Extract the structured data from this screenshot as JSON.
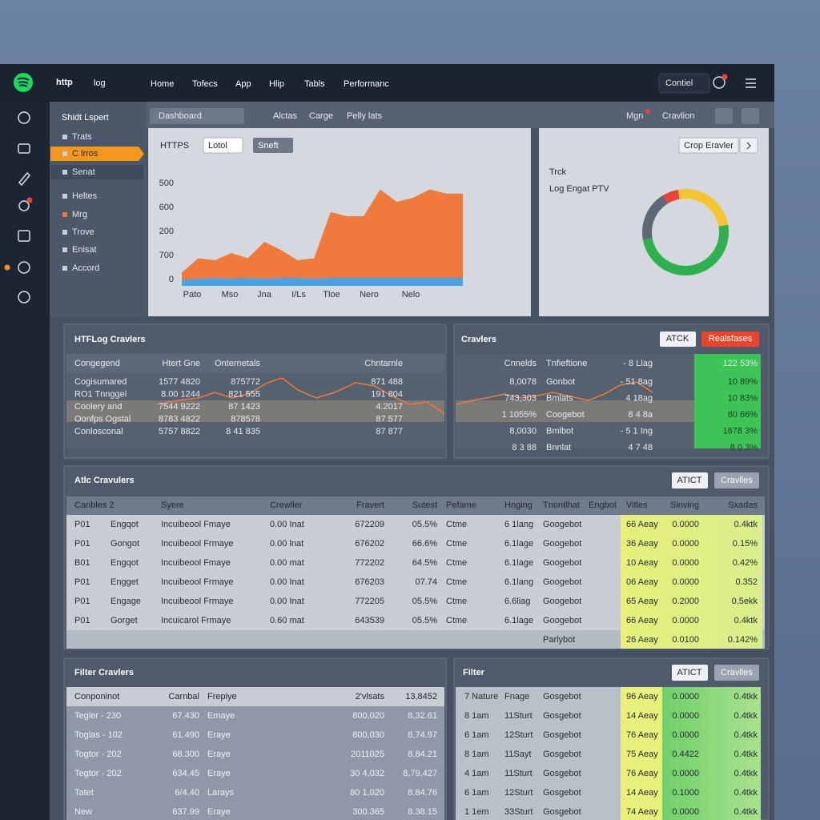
{
  "header": {
    "logo_main": "http",
    "logo_sub": "log",
    "nav": [
      "Home",
      "Tofecs",
      "App",
      "Hlip",
      "Tabls",
      "Performanc"
    ],
    "control": "Contiel"
  },
  "sidebar": {
    "title": "Shidt Lspert",
    "items": [
      "Trats",
      "C lrros",
      "Senat",
      "Heltes",
      "Mrg",
      "Trove",
      "Enisat",
      "Accord"
    ]
  },
  "toolbar": {
    "dropdown": "Dashboard",
    "links": [
      "Alctas",
      "Carge",
      "Pelly lats"
    ],
    "right": [
      "Mgn",
      "Cravlion"
    ]
  },
  "chart_panel": {
    "title": "HTTPS",
    "select1": "Lotol",
    "select2": "Sneft"
  },
  "donut_panel": {
    "button": "Crop Eravler",
    "title": "Trck",
    "subtitle": "Log Engat PTV"
  },
  "chart_data": [
    {
      "type": "area",
      "y_labels": [
        "500",
        "600",
        "200",
        "700",
        "0"
      ],
      "x_labels": [
        "Pato",
        "Mso",
        "Jna",
        "I/Ls",
        "Tloe",
        "Nero",
        "Nelo"
      ],
      "ylim": [
        0,
        100
      ],
      "series": [
        {
          "color": "#f07a3c",
          "values": [
            13,
            27,
            25,
            32,
            27,
            43,
            35,
            25,
            27,
            72,
            68,
            68,
            94,
            82,
            86,
            94,
            90,
            90
          ]
        },
        {
          "color": "#4aa3e0",
          "values": [
            6,
            7,
            8,
            7,
            8,
            7,
            8,
            8,
            7,
            8,
            8,
            8,
            8,
            8,
            8,
            8,
            8,
            8
          ]
        }
      ]
    },
    {
      "type": "pie",
      "values": [
        25,
        50,
        19,
        6
      ],
      "colors": [
        "#f5c531",
        "#2fb04f",
        "#5d6775",
        "#e8453a"
      ]
    }
  ],
  "panel_a": {
    "title": "HTFLog Cravlers",
    "header": [
      "Congegend",
      "Htert Gne",
      "Onternetals",
      "Chntarnle"
    ],
    "rows": [
      [
        "Cogisumared",
        "1577 4820",
        "875772",
        "871 488"
      ],
      [
        "RO1 Tnnggel",
        "8.00 1244",
        "821 555",
        "191 804"
      ],
      [
        "Coolery and",
        "7544 9222",
        "87 1423",
        "4.2017"
      ],
      [
        "Oonfps Ogstal",
        "8783 4822",
        "878578",
        "87 577"
      ],
      [
        "Conlosconal",
        "5757 8822",
        "8 41 835",
        "87 877"
      ]
    ]
  },
  "panel_b": {
    "title": "Cravlers",
    "buttons": [
      "ATCK",
      "Realsfases"
    ],
    "header": [
      "Cnnelds",
      "Tnfieftione",
      "- 8 Llag",
      "122 53%"
    ],
    "rows": [
      [
        "8,0078",
        "Gonbot",
        "- 51 8ag",
        "10 89%"
      ],
      [
        "743,303",
        "Bmlats",
        "4 18ag",
        "10 83%"
      ],
      [
        "1 1055%",
        "Coogebot",
        "8 4 8a",
        "80 66%"
      ],
      [
        "8,0030",
        "Bmlbot",
        "- 5 1 Ing",
        "1878 3%"
      ],
      [
        "8 3 88",
        "Bnnlat",
        "4 7 48",
        "8 0 3%"
      ]
    ]
  },
  "panel_c": {
    "title": "Atlc Cravulers",
    "buttons": [
      "ATICT",
      "Cravlles"
    ],
    "header": [
      "Canbles 2",
      null,
      "Syere",
      "Crewller",
      "Fravert",
      "Sutest",
      "Pefame",
      "Hnging",
      "Tnontlhat",
      "Engbot",
      "Vitles",
      "Sinving",
      "Sxadas"
    ],
    "rows": [
      [
        "P01",
        "Engqot",
        "Incuibeool Fmaye",
        "0.00 Inat",
        "672209",
        "05.5%",
        "Ctme",
        "6 1lang",
        "Googebot",
        null,
        "66 Aeay",
        "0.0000",
        "0.4ktk"
      ],
      [
        "P01",
        "Gongot",
        "Incuibeool Frmaye",
        "0.00 lnat",
        "676202",
        "66.6%",
        "Ctme",
        "6.1lage",
        "Googebot",
        null,
        "36 Aeay",
        "0.0000",
        "0.15%"
      ],
      [
        "B01",
        "Engqot",
        "Incuibeool Fmaye",
        "0.00 mat",
        "772202",
        "64.5%",
        "Ctme",
        "6.1lage",
        "Googebot",
        null,
        "10 Aeay",
        "0.0000",
        "0.42%"
      ],
      [
        "P01",
        "Engget",
        "Incuibeool Frmaye",
        "0.00 Inat",
        "676203",
        "07.74",
        "Ctme",
        "6.1lang",
        "Googebot",
        null,
        "06 Aeay",
        "0.0000",
        "0.352"
      ],
      [
        "P01",
        "Engage",
        "Incuibeool Frmaye",
        "0.00 Inat",
        "772205",
        "05.5%",
        "Ctme",
        "6.6liag",
        "Googebot",
        null,
        "65 Aeay",
        "0.2000",
        "0.5ekk"
      ],
      [
        "P01",
        "Gorget",
        "Incuicarol Frmaye",
        "0.60 mat",
        "643539",
        "05.5%",
        "Ctme",
        "6.1lage",
        "Googebot",
        null,
        "66 Aeay",
        "0.0000",
        "0.4ktk"
      ],
      [
        null,
        null,
        null,
        null,
        null,
        null,
        null,
        null,
        "Parlybot",
        null,
        "26 Aeay",
        "0.0100",
        "0.142%"
      ]
    ]
  },
  "panel_d": {
    "title": "Filter Cravlers",
    "header": [
      "Conponinot",
      "Carnbal",
      "Frepiye",
      "2'vlsats",
      "13,8452"
    ],
    "rows": [
      [
        "Tegler - 230",
        "67.430",
        "Emaye",
        "800,020",
        "8,32.61"
      ],
      [
        "Toglas - 102",
        "61.490",
        "Eraye",
        "800,030",
        "8,74.97"
      ],
      [
        "Togtor - 202",
        "68.300",
        "Eraye",
        "2011025",
        "8,84.21"
      ],
      [
        "Tegtor - 202",
        "634.45",
        "Eraye",
        "30 4,032",
        "8,79,427"
      ],
      [
        "Tatet",
        "6/4.40",
        "Larays",
        "80 1,020",
        "8.84.76"
      ],
      [
        "New",
        "637.99",
        "Eraye",
        "300.365",
        "8.38.15"
      ]
    ]
  },
  "panel_e": {
    "title": "Filter",
    "buttons": [
      "ATICT",
      "Cravlles"
    ],
    "rows": [
      [
        "7 Nature",
        "Fnage",
        "Gosgebot",
        "96 Aeay",
        "0.0000",
        "0.4tkk"
      ],
      [
        "8 1am",
        "11Sturt",
        "Gosgebot",
        "14 Aeay",
        "0.0000",
        "0.4tkk"
      ],
      [
        "6 1am",
        "12Sturt",
        "Gosgebot",
        "76 Aeay",
        "0.0000",
        "0.4tkk"
      ],
      [
        "8 1am",
        "11Sayt",
        "Gosgebot",
        "75 Aeay",
        "0.4422",
        "0.4tkk"
      ],
      [
        "4 1am",
        "11Sturt",
        "Gosgebot",
        "76 Aeay",
        "0.0000",
        "0.4tkk"
      ],
      [
        "6 1am",
        "12Sturt",
        "Gosgebot",
        "14 Aeay",
        "0.1000",
        "0.4tkk"
      ],
      [
        "1 1em",
        "33Sturt",
        "Gosgebot",
        "74 Aeay",
        "0.0000",
        "0.4tkk"
      ]
    ]
  }
}
